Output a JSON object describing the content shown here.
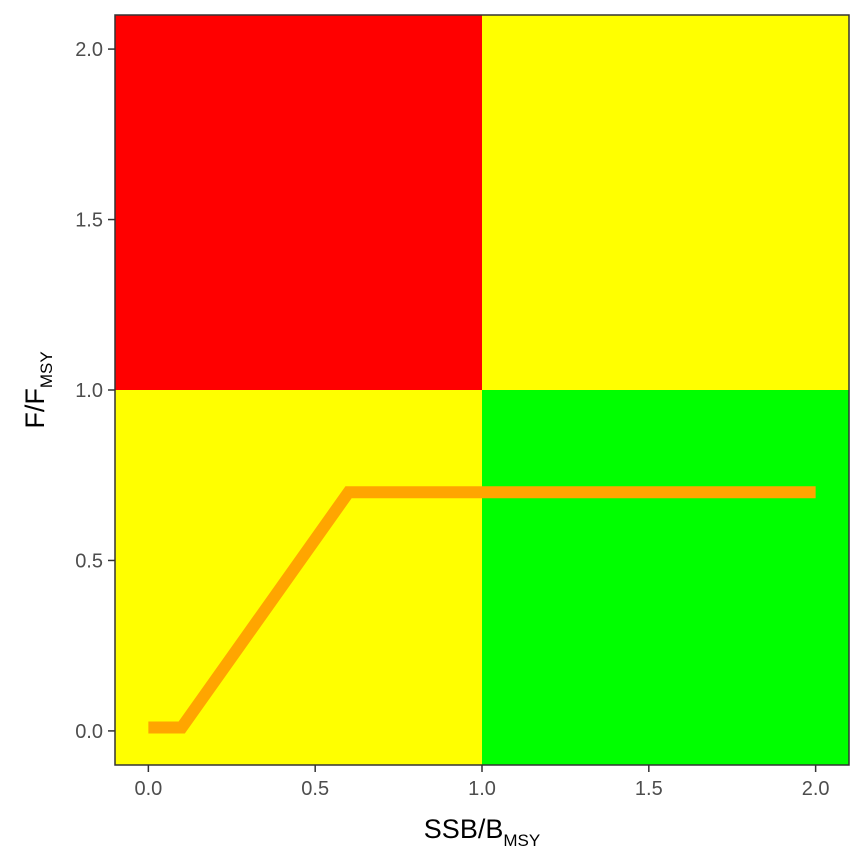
{
  "chart_data": {
    "type": "line",
    "title": "",
    "xlabel": {
      "main": "SSB/B",
      "sub": "MSY"
    },
    "ylabel": {
      "main": "F/F",
      "sub": "MSY"
    },
    "xlim": [
      -0.1,
      2.1
    ],
    "ylim": [
      -0.1,
      2.1
    ],
    "x_ticks": [
      0.0,
      0.5,
      1.0,
      1.5,
      2.0
    ],
    "x_tick_labels": [
      "0.0",
      "0.5",
      "1.0",
      "1.5",
      "2.0"
    ],
    "y_ticks": [
      0.0,
      0.5,
      1.0,
      1.5,
      2.0
    ],
    "y_tick_labels": [
      "0.0",
      "0.5",
      "1.0",
      "1.5",
      "2.0"
    ],
    "grid": false,
    "regions": [
      {
        "x": [
          -0.1,
          1.0
        ],
        "y": [
          1.0,
          2.1
        ],
        "color": "#ff0000"
      },
      {
        "x": [
          1.0,
          2.1
        ],
        "y": [
          1.0,
          2.1
        ],
        "color": "#ffff00"
      },
      {
        "x": [
          -0.1,
          1.0
        ],
        "y": [
          -0.1,
          1.0
        ],
        "color": "#ffff00"
      },
      {
        "x": [
          1.0,
          2.1
        ],
        "y": [
          -0.1,
          1.0
        ],
        "color": "#00ff00"
      }
    ],
    "series": [
      {
        "color": "#ffa500",
        "x": [
          0.0,
          0.1,
          0.6,
          2.0
        ],
        "y": [
          0.01,
          0.01,
          0.7,
          0.7
        ]
      }
    ]
  }
}
